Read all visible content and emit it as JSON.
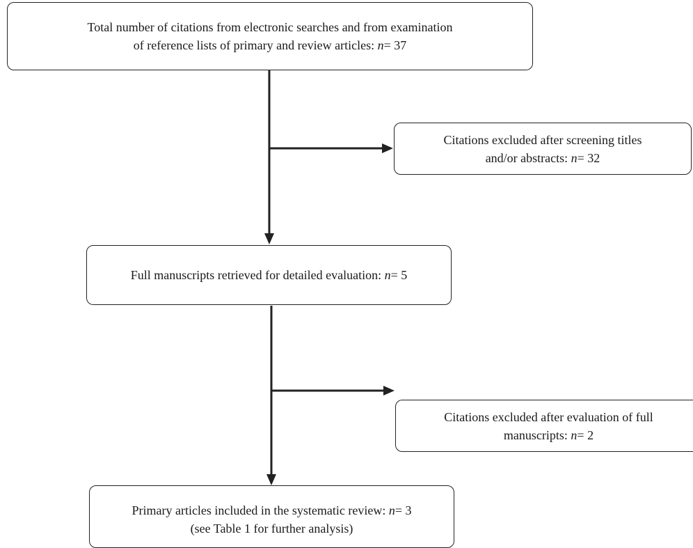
{
  "diagram": {
    "nodes": {
      "total": {
        "line1": "Total number of citations from electronic searches and from examination",
        "line2_prefix": "of reference lists of primary and review articles: ",
        "n_symbol": "n",
        "line2_value": "= 37"
      },
      "excluded_screening": {
        "line1": "Citations excluded after screening titles",
        "line2_prefix": "and/or abstracts: ",
        "n_symbol": "n",
        "line2_value": "= 32"
      },
      "full_manuscripts": {
        "line1_prefix": "Full manuscripts retrieved for detailed evaluation: ",
        "n_symbol": "n",
        "line1_value": "= 5"
      },
      "excluded_full": {
        "line1": "Citations excluded after evaluation of full",
        "line2_prefix": "manuscripts: ",
        "n_symbol": "n",
        "line2_value": "= 2"
      },
      "included": {
        "line1_prefix": "Primary articles included in the systematic review: ",
        "n_symbol": "n",
        "line1_value": "= 3",
        "line2": "(see Table 1 for further analysis)"
      }
    },
    "edges": [
      {
        "from": "total",
        "to": "full_manuscripts"
      },
      {
        "from": "total",
        "to": "excluded_screening"
      },
      {
        "from": "full_manuscripts",
        "to": "included"
      },
      {
        "from": "full_manuscripts",
        "to": "excluded_full"
      }
    ],
    "colors": {
      "stroke": "#222222",
      "text": "#1a1a1a",
      "background": "#ffffff"
    }
  }
}
